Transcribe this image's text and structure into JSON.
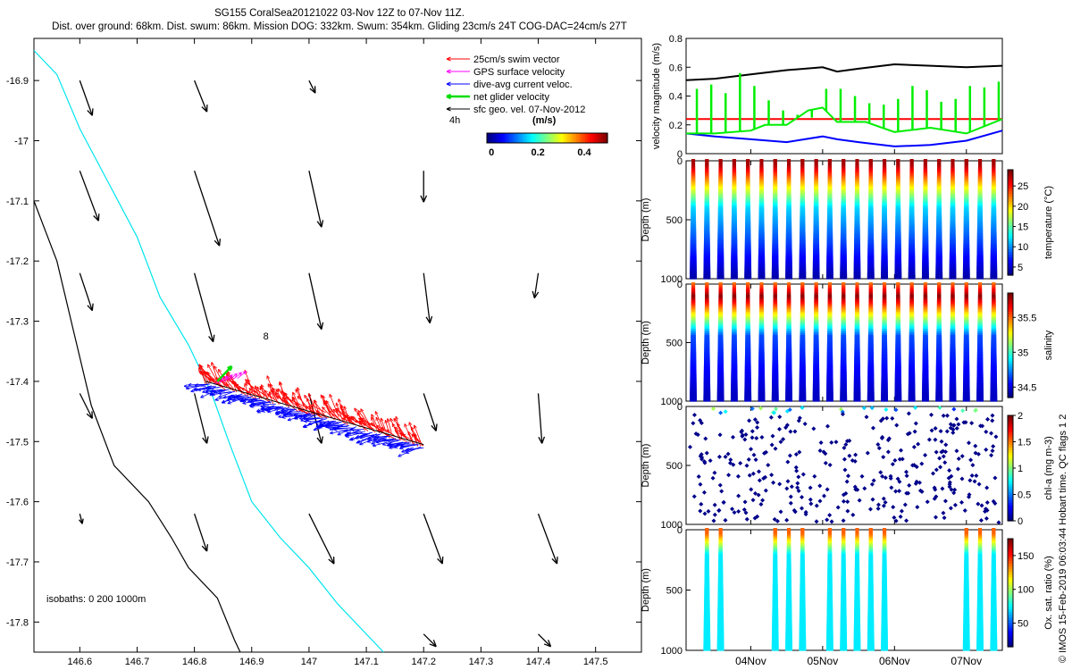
{
  "header": {
    "title_line1": "SG155 CoralSea20121022 03-Nov 12Z to 07-Nov 11Z.",
    "title_line2": "Dist. over ground: 68km. Dist. swum: 86km. Mission DOG: 332km. Swum: 354km. Gliding 23cm/s 24T COG-DAC=24cm/s 27T"
  },
  "side_credit": "© IMOS 15-Feb-2019 06:03:44 Hobart time. QC flags 1  2",
  "colors": {
    "coast": "#000000",
    "isobath_200": "#00e5ee",
    "swim": "#ff0000",
    "gps": "#ff00ff",
    "dac": "#0000ff",
    "net": "#00dd00",
    "sfc": "#000000"
  },
  "chart_data": [
    {
      "type": "map",
      "legend": {
        "items": [
          "25cm/s swim vector",
          "GPS surface velocity",
          "dive-avg current veloc.",
          "net glider velocity",
          "sfc geo. vel. 07-Nov-2012"
        ],
        "scale_label": "4h",
        "colorbar_title": "(m/s)",
        "colorbar_ticks": [
          "0",
          "0.2",
          "0.4"
        ],
        "colorbar_range": [
          -0.02,
          0.5
        ]
      },
      "xlim": [
        146.52,
        147.58
      ],
      "ylim": [
        -17.85,
        -16.83
      ],
      "xticks": [
        146.6,
        146.7,
        146.8,
        146.9,
        147,
        147.1,
        147.2,
        147.3,
        147.4,
        147.5
      ],
      "yticks": [
        -16.9,
        -17,
        -17.1,
        -17.2,
        -17.3,
        -17.4,
        -17.5,
        -17.6,
        -17.7,
        -17.8
      ],
      "annotation": {
        "text": "8",
        "lon": 146.92,
        "lat": -17.33
      },
      "isobath_label": "isobaths: 0   200  1000m",
      "coastline": [
        [
          146.52,
          -17.1
        ],
        [
          146.56,
          -17.2
        ],
        [
          146.59,
          -17.32
        ],
        [
          146.62,
          -17.44
        ],
        [
          146.66,
          -17.54
        ],
        [
          146.72,
          -17.6
        ],
        [
          146.76,
          -17.66
        ],
        [
          146.79,
          -17.71
        ],
        [
          146.84,
          -17.76
        ],
        [
          146.87,
          -17.83
        ],
        [
          146.88,
          -17.85
        ]
      ],
      "isobath_200": [
        [
          146.52,
          -16.85
        ],
        [
          146.56,
          -16.89
        ],
        [
          146.6,
          -16.98
        ],
        [
          146.65,
          -17.07
        ],
        [
          146.7,
          -17.16
        ],
        [
          146.74,
          -17.26
        ],
        [
          146.79,
          -17.34
        ],
        [
          146.83,
          -17.42
        ],
        [
          146.86,
          -17.5
        ],
        [
          146.9,
          -17.6
        ],
        [
          146.95,
          -17.66
        ],
        [
          147.0,
          -17.71
        ],
        [
          147.05,
          -17.77
        ],
        [
          147.11,
          -17.83
        ],
        [
          147.13,
          -17.85
        ]
      ],
      "track_start": [
        146.82,
        -17.4
      ],
      "track_end": [
        147.2,
        -17.505
      ],
      "surface_vectors": {
        "lons": [
          146.6,
          146.8,
          147.0,
          147.2,
          147.4
        ],
        "lats": [
          -16.9,
          -17.05,
          -17.22,
          -17.42,
          -17.62,
          -17.82
        ],
        "u": [
          [
            0.01,
            0.01,
            0.005,
            0,
            0
          ],
          [
            0.015,
            0.02,
            0.01,
            0,
            0
          ],
          [
            0.01,
            0.015,
            0.01,
            0.005,
            -0.003
          ],
          [
            0.01,
            0.01,
            0.01,
            0.01,
            0.003
          ],
          [
            0.002,
            0.01,
            0.02,
            0.015,
            0.015
          ],
          [
            0,
            0.005,
            0.01,
            0.01,
            0.01
          ]
        ],
        "v": [
          [
            -0.028,
            -0.025,
            -0.01,
            0,
            0
          ],
          [
            -0.04,
            -0.06,
            -0.045,
            -0.025,
            0
          ],
          [
            -0.03,
            -0.055,
            -0.045,
            -0.04,
            -0.02
          ],
          [
            -0.02,
            -0.04,
            -0.04,
            -0.03,
            -0.04
          ],
          [
            -0.008,
            -0.03,
            -0.04,
            -0.04,
            -0.04
          ],
          [
            0,
            -0.025,
            -0.02,
            -0.01,
            -0.01
          ]
        ]
      }
    },
    {
      "type": "line",
      "ylabel": "velocity magnitude (m/s)",
      "ylim": [
        0,
        0.8
      ],
      "yticks": [
        0,
        0.2,
        0.4,
        0.6,
        0.8
      ],
      "xlim": [
        3.1,
        7.5
      ],
      "series": [
        {
          "color": "#000000",
          "x": [
            3.1,
            3.5,
            4.0,
            4.5,
            5.0,
            5.2,
            5.5,
            6.0,
            6.5,
            7.0,
            7.5
          ],
          "y": [
            0.51,
            0.52,
            0.55,
            0.58,
            0.6,
            0.57,
            0.59,
            0.62,
            0.61,
            0.6,
            0.61
          ]
        },
        {
          "color": "#ff0000",
          "x": [
            3.1,
            7.5
          ],
          "y": [
            0.24,
            0.24
          ]
        },
        {
          "color": "#0000ff",
          "x": [
            3.1,
            3.5,
            4.0,
            4.5,
            5.0,
            5.2,
            5.5,
            6.0,
            6.5,
            7.0,
            7.5
          ],
          "y": [
            0.14,
            0.12,
            0.1,
            0.08,
            0.12,
            0.1,
            0.08,
            0.05,
            0.06,
            0.09,
            0.16
          ]
        },
        {
          "color": "#00ee00",
          "x": [
            3.1,
            3.5,
            4.0,
            4.2,
            4.5,
            4.8,
            5.0,
            5.2,
            5.6,
            6.0,
            6.5,
            7.0,
            7.5
          ],
          "y": [
            0.14,
            0.14,
            0.16,
            0.2,
            0.2,
            0.3,
            0.32,
            0.22,
            0.22,
            0.15,
            0.18,
            0.14,
            0.24
          ]
        }
      ],
      "green_spikes": {
        "x": [
          3.25,
          3.45,
          3.65,
          3.85,
          4.05,
          4.25,
          4.45,
          4.65,
          4.85,
          5.05,
          5.25,
          5.45,
          5.65,
          5.85,
          6.05,
          6.25,
          6.45,
          6.65,
          6.85,
          7.05,
          7.25,
          7.45
        ],
        "y": [
          0.45,
          0.48,
          0.42,
          0.56,
          0.47,
          0.37,
          0.3,
          0.27,
          0.25,
          0.45,
          0.45,
          0.4,
          0.35,
          0.34,
          0.38,
          0.47,
          0.44,
          0.36,
          0.38,
          0.47,
          0.46,
          0.5
        ]
      }
    },
    {
      "type": "heatmap",
      "ylabel": "Depth (m)",
      "cbar_label": "temperature (°C)",
      "cbar_ticks": [
        5,
        10,
        15,
        20,
        25
      ],
      "cbar_range": [
        3,
        29
      ],
      "ylim": [
        1000,
        0
      ],
      "xlim": [
        3.1,
        7.5
      ],
      "yticks": [
        0,
        500,
        1000
      ],
      "profile_spacing": 0.19,
      "profile_count": 23
    },
    {
      "type": "heatmap",
      "ylabel": "Depth (m)",
      "cbar_label": "salinity",
      "cbar_ticks": [
        34.5,
        35,
        35.5
      ],
      "cbar_range": [
        34.35,
        35.85
      ],
      "ylim": [
        1000,
        0
      ],
      "xlim": [
        3.1,
        7.5
      ],
      "yticks": [
        0,
        500,
        1000
      ],
      "profile_spacing": 0.19,
      "profile_count": 23
    },
    {
      "type": "scatter",
      "ylabel": "Depth (m)",
      "cbar_label": "chl-a (mg m-3)",
      "cbar_ticks": [
        0,
        0.5,
        1,
        1.5,
        2
      ],
      "cbar_range": [
        0,
        2
      ],
      "ylim": [
        1000,
        0
      ],
      "xlim": [
        3.1,
        7.5
      ],
      "yticks": [
        0,
        500,
        1000
      ]
    },
    {
      "type": "heatmap",
      "ylabel": "Depth (m)",
      "cbar_label": "Ox. sat. ratio (%)",
      "cbar_ticks": [
        50,
        100,
        150
      ],
      "cbar_range": [
        15,
        175
      ],
      "ylim": [
        1000,
        0
      ],
      "xlim": [
        3.1,
        7.5
      ],
      "yticks": [
        0,
        500,
        1000
      ],
      "xticks": [
        4,
        5,
        6,
        7
      ],
      "xticklabels": [
        "04Nov",
        "05Nov",
        "06Nov",
        "07Nov"
      ],
      "profile_windows": [
        [
          3.35,
          3.62
        ],
        [
          4.3,
          4.82
        ],
        [
          5.1,
          5.95
        ],
        [
          6.95,
          7.5
        ]
      ]
    }
  ]
}
